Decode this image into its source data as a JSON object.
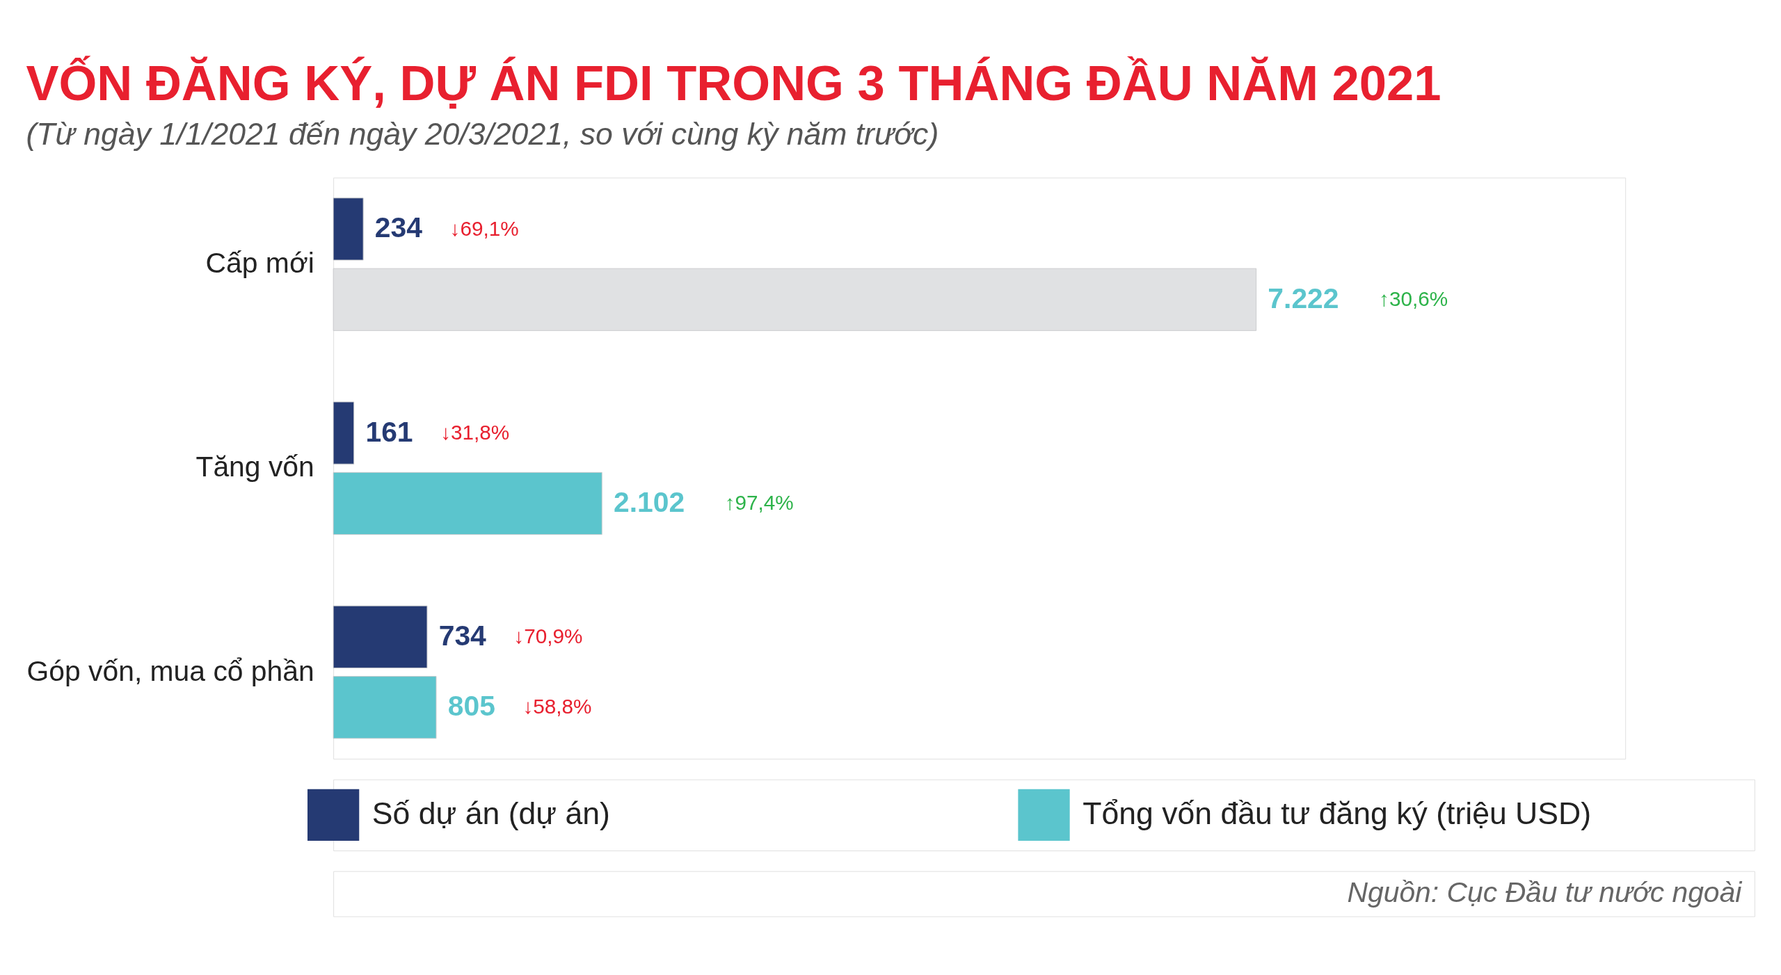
{
  "chart_data": {
    "type": "bar",
    "orientation": "horizontal",
    "title": "VỐN ĐĂNG KÝ, DỰ ÁN FDI TRONG 3 THÁNG ĐẦU NĂM 2021",
    "subtitle": "(Từ ngày 1/1/2021 đến ngày 20/3/2021, so với cùng kỳ năm trước)",
    "categories": [
      "Cấp mới",
      "Tăng vốn",
      "Góp vốn, mua cổ phần"
    ],
    "series": [
      {
        "name": "Số dự án (dự án)",
        "color": "#253a73",
        "values": [
          234,
          161,
          734
        ],
        "value_labels": [
          "234",
          "161",
          "734"
        ]
      },
      {
        "name": "Tổng vốn đầu tư đăng ký (triệu USD)",
        "color": "#5bc5cd",
        "colors": [
          "#e0e1e3",
          "#5bc5cd",
          "#5bc5cd"
        ],
        "values": [
          7222,
          2102,
          805
        ],
        "value_labels": [
          "7.222",
          "2.102",
          "805"
        ]
      }
    ],
    "annotations": [
      "↓69,1%",
      "↓31,8%",
      "↓70,9%",
      "↑30,6%",
      "↑97,4%",
      "↓58,8%",
      "Nguồn: Cục Đầu tư nước ngoài"
    ],
    "legend": "bottom"
  }
}
